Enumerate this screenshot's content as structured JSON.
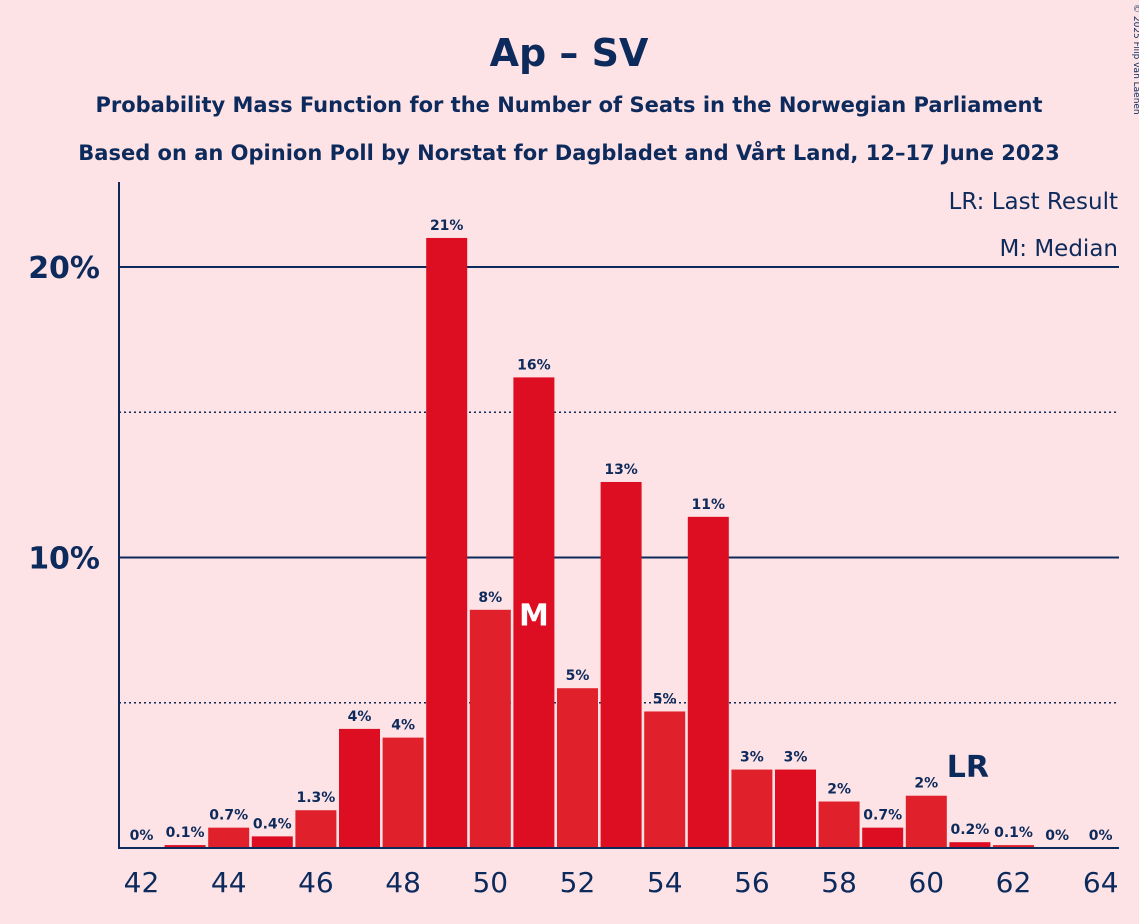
{
  "title": "Ap – SV",
  "subtitle1": "Probability Mass Function for the Number of Seats in the Norwegian Parliament",
  "subtitle2": "Based on an Opinion Poll by Norstat for Dagbladet and Vårt Land, 12–17 June 2023",
  "copyright": "© 2025 Filip van Laenen",
  "legend": {
    "lr": "LR: Last Result",
    "median": "M: Median"
  },
  "marks": {
    "median_label": "M",
    "last_result_label": "LR",
    "median_seat": 51,
    "last_result_seat": 61
  },
  "colors": {
    "bar": "#dd0d22",
    "bar_alt": "#e0202a",
    "text": "#0d2a5c",
    "background": "#fde3e5"
  },
  "chart_data": {
    "type": "bar",
    "x": [
      42,
      43,
      44,
      45,
      46,
      47,
      48,
      49,
      50,
      51,
      52,
      53,
      54,
      55,
      56,
      57,
      58,
      59,
      60,
      61,
      62,
      63,
      64
    ],
    "values": [
      0.0,
      0.1,
      0.7,
      0.4,
      1.3,
      4.1,
      3.8,
      21.0,
      8.2,
      16.2,
      5.5,
      12.6,
      4.7,
      11.4,
      2.7,
      2.7,
      1.6,
      0.7,
      1.8,
      0.2,
      0.1,
      0.0,
      0.0
    ],
    "labels": [
      "0%",
      "0.1%",
      "0.7%",
      "0.4%",
      "1.3%",
      "4%",
      "4%",
      "21%",
      "8%",
      "16%",
      "5%",
      "13%",
      "5%",
      "11%",
      "3%",
      "3%",
      "2%",
      "0.7%",
      "2%",
      "0.2%",
      "0.1%",
      "0%",
      "0%"
    ],
    "xticks": [
      "42",
      "44",
      "46",
      "48",
      "50",
      "52",
      "54",
      "56",
      "58",
      "60",
      "62",
      "64"
    ],
    "yticks": [
      {
        "value": 10,
        "label": "10%"
      },
      {
        "value": 20,
        "label": "20%"
      }
    ],
    "dotted_gridlines": [
      5,
      15
    ],
    "ylim": [
      0,
      23
    ],
    "grid": true,
    "legend_position": "top-right"
  }
}
